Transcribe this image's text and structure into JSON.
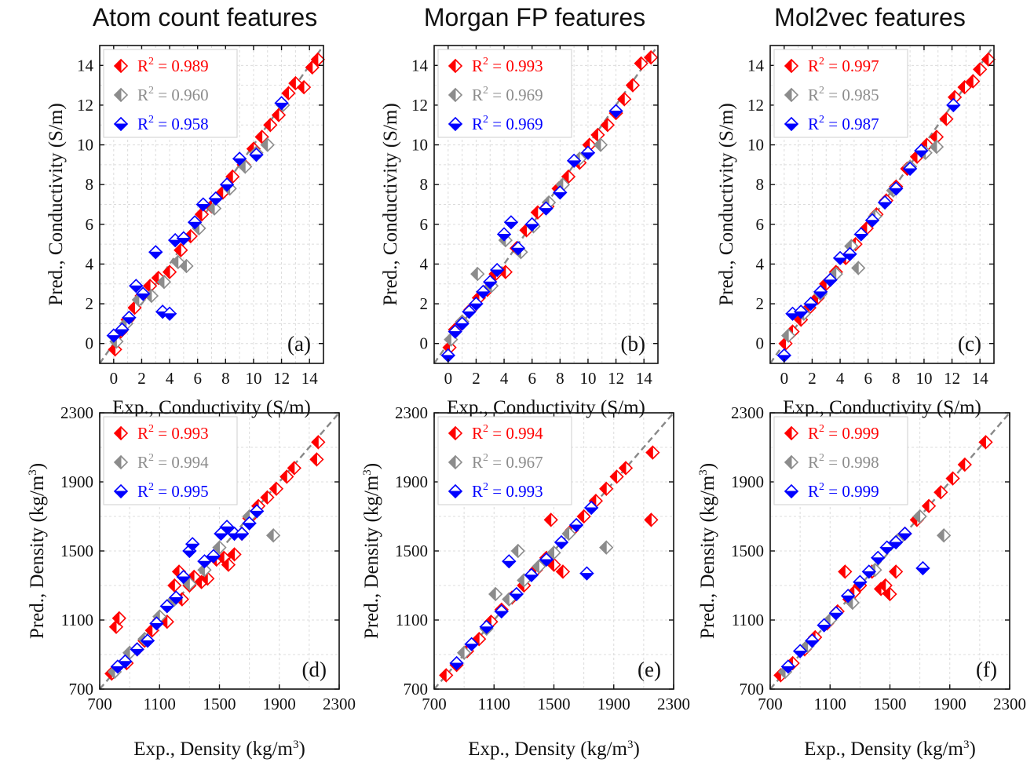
{
  "titles": [
    "Atom count features",
    "Morgan FP features",
    "Mol2vec features"
  ],
  "colors": {
    "train": "#ff0000",
    "val": "#8c8c8c",
    "test": "#0000ff",
    "parity": "#888888"
  },
  "legend_markers": [
    "half-filled-diamond-left",
    "half-filled-diamond-left",
    "half-filled-diamond-bottom"
  ],
  "chart_data": [
    {
      "type": "scatter",
      "letter": "(a)",
      "title": "Atom count features",
      "xlabel": "Exp., Conductivity (S/m)",
      "ylabel": "Pred., Conductivity (S/m)",
      "xlim": [
        -1,
        15
      ],
      "ylim": [
        -1,
        15
      ],
      "xticks": [
        0,
        2,
        4,
        6,
        8,
        10,
        12,
        14
      ],
      "yticks": [
        0,
        2,
        4,
        6,
        8,
        10,
        12,
        14
      ],
      "grid": true,
      "legend_position": "top-left",
      "legend": [
        "R2 = 0.989",
        "R2 = 0.960",
        "R2 = 0.958"
      ],
      "series": [
        {
          "r2": 0.989,
          "x": [
            0.1,
            0.5,
            1.0,
            1.5,
            2.0,
            2.6,
            3.2,
            4.0,
            4.8,
            5.5,
            6.3,
            7.0,
            7.8,
            8.5,
            9.3,
            10.0,
            10.6,
            11.2,
            11.8,
            12.5,
            13.0,
            13.6,
            14.2,
            14.6
          ],
          "y": [
            -0.3,
            0.6,
            1.2,
            1.8,
            2.4,
            2.9,
            3.3,
            3.6,
            4.7,
            5.4,
            6.5,
            6.9,
            7.6,
            8.4,
            9.0,
            9.8,
            10.4,
            11.0,
            11.5,
            12.6,
            13.1,
            12.9,
            13.9,
            14.3
          ]
        },
        {
          "r2": 0.96,
          "x": [
            0.2,
            0.9,
            1.8,
            2.7,
            3.6,
            4.6,
            5.2,
            6.1,
            7.2,
            8.3,
            9.4,
            10.2,
            11.0,
            12.1
          ],
          "y": [
            0.1,
            1.0,
            2.2,
            2.4,
            3.1,
            4.1,
            3.9,
            5.8,
            6.8,
            7.8,
            8.9,
            9.6,
            10.0,
            12.0
          ]
        },
        {
          "r2": 0.958,
          "x": [
            0.0,
            0.6,
            1.1,
            1.6,
            2.1,
            3.0,
            3.5,
            4.0,
            4.4,
            5.0,
            5.8,
            6.4,
            7.3,
            8.1,
            9.0,
            10.2,
            12.0
          ],
          "y": [
            0.4,
            0.7,
            1.3,
            2.9,
            2.5,
            4.6,
            1.6,
            1.5,
            5.2,
            5.3,
            6.1,
            7.0,
            7.3,
            8.0,
            9.3,
            9.5,
            12.1
          ]
        }
      ]
    },
    {
      "type": "scatter",
      "letter": "(b)",
      "title": "Morgan FP features",
      "xlabel": "Exp., Conductivity (S/m)",
      "ylabel": "Pred., Conductivity (S/m)",
      "xlim": [
        -1,
        15
      ],
      "ylim": [
        -1,
        15
      ],
      "xticks": [
        0,
        2,
        4,
        6,
        8,
        10,
        12,
        14
      ],
      "yticks": [
        0,
        2,
        4,
        6,
        8,
        10,
        12,
        14
      ],
      "grid": true,
      "legend_position": "top-left",
      "legend": [
        "R2 = 0.993",
        "R2 = 0.969",
        "R2 = 0.969"
      ],
      "series": [
        {
          "r2": 0.993,
          "x": [
            0.1,
            0.5,
            1.0,
            1.6,
            2.2,
            2.8,
            3.4,
            4.1,
            4.9,
            5.6,
            6.4,
            7.1,
            7.9,
            8.6,
            9.4,
            10.1,
            10.7,
            11.4,
            12.0,
            12.6,
            13.2,
            13.8,
            14.5
          ],
          "y": [
            -0.2,
            0.7,
            1.1,
            1.7,
            2.3,
            2.7,
            3.5,
            3.6,
            4.8,
            5.7,
            6.6,
            6.9,
            7.8,
            8.4,
            9.1,
            10.0,
            10.5,
            11.0,
            11.6,
            12.3,
            13.0,
            14.1,
            14.4
          ]
        },
        {
          "r2": 0.969,
          "x": [
            0.2,
            1.0,
            2.1,
            3.1,
            4.1,
            5.2,
            6.1,
            7.2,
            8.2,
            9.4,
            10.9
          ],
          "y": [
            0.2,
            1.1,
            3.5,
            2.9,
            5.2,
            4.6,
            5.9,
            7.1,
            8.0,
            9.3,
            10.0
          ]
        },
        {
          "r2": 0.969,
          "x": [
            0.0,
            0.5,
            1.0,
            1.5,
            2.0,
            2.5,
            3.0,
            3.5,
            4.0,
            4.5,
            5.0,
            6.0,
            7.0,
            8.0,
            9.0,
            10.0,
            12.0
          ],
          "y": [
            -0.6,
            0.6,
            1.0,
            1.6,
            2.0,
            2.6,
            3.1,
            3.7,
            5.5,
            6.1,
            4.8,
            6.0,
            6.8,
            7.6,
            9.2,
            9.6,
            11.7
          ]
        }
      ]
    },
    {
      "type": "scatter",
      "letter": "(c)",
      "title": "Mol2vec features",
      "xlabel": "Exp., Conductivity (S/m)",
      "ylabel": "Pred., Conductivity (S/m)",
      "xlim": [
        -1,
        15
      ],
      "ylim": [
        -1,
        15
      ],
      "xticks": [
        0,
        2,
        4,
        6,
        8,
        10,
        12,
        14
      ],
      "yticks": [
        0,
        2,
        4,
        6,
        8,
        10,
        12,
        14
      ],
      "grid": true,
      "legend_position": "top-left",
      "legend": [
        "R2 = 0.997",
        "R2 = 0.985",
        "R2 = 0.987"
      ],
      "series": [
        {
          "r2": 0.997,
          "x": [
            0.1,
            0.6,
            1.2,
            1.8,
            2.4,
            3.0,
            3.7,
            4.4,
            5.1,
            5.9,
            6.6,
            7.3,
            8.0,
            8.8,
            9.5,
            10.2,
            10.9,
            11.6,
            12.2,
            12.9,
            13.5,
            14.0,
            14.6
          ],
          "y": [
            0.0,
            0.6,
            1.2,
            1.8,
            2.3,
            3.0,
            3.6,
            4.3,
            5.0,
            5.8,
            6.5,
            7.2,
            7.9,
            8.8,
            9.4,
            10.0,
            10.4,
            11.3,
            12.4,
            12.9,
            13.2,
            13.8,
            14.3
          ]
        },
        {
          "r2": 0.985,
          "x": [
            0.3,
            1.4,
            2.6,
            3.7,
            4.8,
            5.3,
            6.5,
            7.8,
            9.0,
            10.1,
            10.9
          ],
          "y": [
            0.4,
            1.5,
            2.5,
            3.5,
            4.9,
            3.8,
            6.4,
            7.7,
            8.9,
            9.6,
            9.9
          ]
        },
        {
          "r2": 0.987,
          "x": [
            0.0,
            0.6,
            1.2,
            1.9,
            2.6,
            3.3,
            4.0,
            4.7,
            5.5,
            6.3,
            7.2,
            8.0,
            9.0,
            9.8,
            12.1
          ],
          "y": [
            -0.6,
            1.5,
            1.6,
            2.0,
            2.6,
            3.2,
            4.3,
            4.5,
            5.5,
            6.2,
            7.1,
            7.8,
            8.8,
            9.7,
            12.0
          ]
        }
      ]
    },
    {
      "type": "scatter",
      "letter": "(d)",
      "xlabel": "Exp., Density (kg/m3)",
      "ylabel": "Pred., Density (kg/m3)",
      "xlim": [
        700,
        2300
      ],
      "ylim": [
        700,
        2300
      ],
      "xticks": [
        700,
        1100,
        1500,
        1900,
        2300
      ],
      "yticks": [
        700,
        1100,
        1500,
        1900,
        2300
      ],
      "grid": true,
      "legend_position": "top-left",
      "legend": [
        "R2 = 0.993",
        "R2 = 0.994",
        "R2 = 0.995"
      ],
      "series": [
        {
          "r2": 0.993,
          "x": [
            780,
            810,
            830,
            880,
            950,
            1000,
            1050,
            1100,
            1150,
            1200,
            1230,
            1250,
            1300,
            1330,
            1380,
            1420,
            1480,
            1530,
            1560,
            1600,
            1650,
            1700,
            1760,
            1820,
            1880,
            1950,
            2000,
            2150,
            2160
          ],
          "y": [
            790,
            1060,
            1110,
            850,
            930,
            980,
            1040,
            1100,
            1090,
            1300,
            1380,
            1220,
            1300,
            1350,
            1320,
            1340,
            1450,
            1460,
            1420,
            1480,
            1600,
            1690,
            1760,
            1810,
            1860,
            1930,
            1980,
            2030,
            2130
          ]
        },
        {
          "r2": 0.994,
          "x": [
            800,
            900,
            1000,
            1100,
            1200,
            1300,
            1400,
            1500,
            1600,
            1700,
            1860
          ],
          "y": [
            800,
            910,
            990,
            1120,
            1220,
            1310,
            1390,
            1520,
            1600,
            1700,
            1590
          ]
        },
        {
          "r2": 0.995,
          "x": [
            820,
            870,
            950,
            1020,
            1080,
            1150,
            1210,
            1260,
            1300,
            1320,
            1400,
            1460,
            1510,
            1550,
            1600,
            1650,
            1700,
            1750
          ],
          "y": [
            830,
            860,
            930,
            980,
            1080,
            1180,
            1230,
            1350,
            1500,
            1540,
            1440,
            1470,
            1600,
            1640,
            1600,
            1600,
            1660,
            1730
          ]
        }
      ]
    },
    {
      "type": "scatter",
      "letter": "(e)",
      "xlabel": "Exp., Density (kg/m3)",
      "ylabel": "Pred., Density (kg/m3)",
      "xlim": [
        700,
        2300
      ],
      "ylim": [
        700,
        2300
      ],
      "xticks": [
        700,
        1100,
        1500,
        1900,
        2300
      ],
      "yticks": [
        700,
        1100,
        1500,
        1900,
        2300
      ],
      "grid": true,
      "legend_position": "top-left",
      "legend": [
        "R2 = 0.994",
        "R2 = 0.967",
        "R2 = 0.993"
      ],
      "series": [
        {
          "r2": 0.994,
          "x": [
            780,
            850,
            920,
            1000,
            1080,
            1150,
            1220,
            1300,
            1380,
            1450,
            1480,
            1500,
            1560,
            1620,
            1700,
            1780,
            1850,
            1920,
            1980,
            2150,
            2160
          ],
          "y": [
            780,
            840,
            920,
            990,
            1090,
            1160,
            1230,
            1300,
            1390,
            1460,
            1680,
            1420,
            1380,
            1620,
            1700,
            1790,
            1860,
            1930,
            1980,
            1680,
            2070
          ]
        },
        {
          "r2": 0.967,
          "x": [
            900,
            1050,
            1110,
            1200,
            1260,
            1300,
            1400,
            1500,
            1600,
            1850
          ],
          "y": [
            910,
            1050,
            1250,
            1220,
            1500,
            1330,
            1410,
            1490,
            1600,
            1520
          ]
        },
        {
          "r2": 0.993,
          "x": [
            850,
            950,
            1050,
            1150,
            1200,
            1250,
            1350,
            1450,
            1550,
            1650,
            1720,
            1750
          ],
          "y": [
            850,
            960,
            1060,
            1150,
            1440,
            1250,
            1360,
            1450,
            1550,
            1650,
            1370,
            1750
          ]
        }
      ]
    },
    {
      "type": "scatter",
      "letter": "(f)",
      "xlabel": "Exp., Density (kg/m3)",
      "ylabel": "Pred., Density (kg/m3)",
      "xlim": [
        700,
        2300
      ],
      "ylim": [
        700,
        2300
      ],
      "xticks": [
        700,
        1100,
        1500,
        1900,
        2300
      ],
      "yticks": [
        700,
        1100,
        1500,
        1900,
        2300
      ],
      "grid": true,
      "legend_position": "top-left",
      "legend": [
        "R2 = 0.999",
        "R2 = 0.998",
        "R2 = 0.999"
      ],
      "series": [
        {
          "r2": 0.999,
          "x": [
            770,
            850,
            930,
            1000,
            1080,
            1150,
            1200,
            1230,
            1260,
            1300,
            1380,
            1440,
            1470,
            1500,
            1540,
            1600,
            1680,
            1760,
            1840,
            1920,
            2000,
            2140
          ],
          "y": [
            780,
            850,
            930,
            1000,
            1080,
            1150,
            1380,
            1220,
            1260,
            1300,
            1380,
            1280,
            1300,
            1250,
            1380,
            1600,
            1680,
            1760,
            1840,
            1920,
            2000,
            2130
          ]
        },
        {
          "r2": 0.998,
          "x": [
            800,
            950,
            1100,
            1250,
            1400,
            1550,
            1700,
            1860
          ],
          "y": [
            800,
            950,
            1100,
            1200,
            1390,
            1560,
            1700,
            1590
          ]
        },
        {
          "r2": 0.999,
          "x": [
            820,
            900,
            980,
            1060,
            1140,
            1220,
            1300,
            1360,
            1420,
            1480,
            1540,
            1600,
            1720
          ],
          "y": [
            830,
            920,
            980,
            1070,
            1140,
            1240,
            1320,
            1380,
            1460,
            1520,
            1550,
            1600,
            1400
          ]
        }
      ]
    }
  ]
}
